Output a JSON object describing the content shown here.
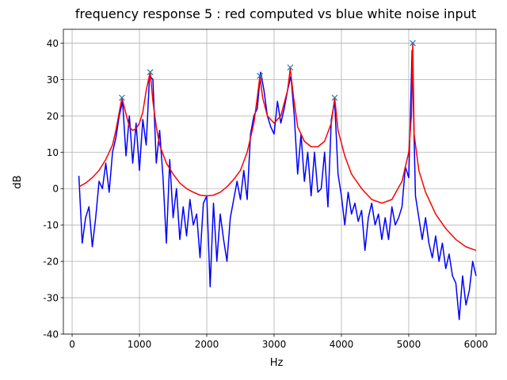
{
  "chart_data": {
    "type": "line",
    "title": "frequency response 5 : red computed vs blue white noise input",
    "x_label": "Hz",
    "y_label": "dB",
    "xlim": [
      -130,
      6295
    ],
    "ylim": [
      -40,
      43.8
    ],
    "xticks": [
      0,
      1000,
      2000,
      3000,
      4000,
      5000,
      6000
    ],
    "yticks": [
      -40,
      -30,
      -20,
      -10,
      0,
      10,
      20,
      30,
      40
    ],
    "grid": true,
    "series": [
      {
        "color": "#0000ff",
        "marker": "none",
        "x": [
          100,
          150,
          200,
          250,
          300,
          350,
          400,
          450,
          500,
          550,
          600,
          650,
          700,
          750,
          800,
          850,
          900,
          950,
          1000,
          1050,
          1100,
          1150,
          1200,
          1250,
          1300,
          1350,
          1400,
          1450,
          1500,
          1550,
          1600,
          1650,
          1700,
          1750,
          1800,
          1850,
          1900,
          1950,
          2000,
          2050,
          2100,
          2150,
          2200,
          2250,
          2300,
          2350,
          2400,
          2450,
          2500,
          2550,
          2600,
          2650,
          2700,
          2750,
          2800,
          2850,
          2900,
          2950,
          3000,
          3050,
          3100,
          3150,
          3200,
          3250,
          3300,
          3350,
          3400,
          3450,
          3500,
          3550,
          3600,
          3650,
          3700,
          3750,
          3800,
          3850,
          3900,
          3950,
          4000,
          4050,
          4100,
          4150,
          4200,
          4250,
          4300,
          4350,
          4400,
          4450,
          4500,
          4550,
          4600,
          4650,
          4700,
          4750,
          4800,
          4850,
          4900,
          4950,
          5000,
          5050,
          5100,
          5150,
          5200,
          5250,
          5300,
          5350,
          5400,
          5450,
          5500,
          5550,
          5600,
          5650,
          5700,
          5750,
          5800,
          5850,
          5900,
          5950,
          6000
        ],
        "values": [
          3.5,
          -15,
          -8,
          -5,
          -16,
          -8,
          2,
          0,
          7,
          -1,
          10,
          14,
          20,
          24,
          9,
          20,
          7,
          18,
          5,
          19,
          12,
          31,
          30,
          7,
          16,
          3,
          -15,
          8,
          -8,
          0,
          -14,
          -5,
          -13,
          -3,
          -10,
          -7,
          -19,
          -4,
          -2,
          -27,
          -4,
          -20,
          -7,
          -14,
          -20,
          -8,
          -3,
          2,
          -3,
          5,
          -3,
          15,
          20,
          22,
          32,
          27,
          20,
          17,
          15,
          24,
          18,
          22,
          27,
          31,
          20,
          4,
          15,
          2,
          10,
          -2,
          10,
          -1,
          0,
          10,
          -5,
          19,
          24,
          4,
          -2,
          -10,
          -1,
          -7,
          -4,
          -9,
          -6,
          -17,
          -8,
          -4,
          -10,
          -7,
          -14,
          -8,
          -14,
          -5,
          -10,
          -8,
          -5,
          6,
          3,
          38,
          -2,
          -8,
          -14,
          -8,
          -15,
          -19,
          -13,
          -20,
          -15,
          -22,
          -18,
          -24,
          -26,
          -36,
          -24,
          -32,
          -28,
          -20,
          -24
        ]
      },
      {
        "color": "#ff0000",
        "marker": "none",
        "x": [
          100,
          200,
          300,
          400,
          500,
          600,
          650,
          700,
          740,
          780,
          850,
          900,
          950,
          1000,
          1050,
          1100,
          1160,
          1200,
          1250,
          1300,
          1400,
          1500,
          1600,
          1700,
          1800,
          1900,
          2000,
          2100,
          2200,
          2300,
          2400,
          2500,
          2600,
          2700,
          2750,
          2790,
          2830,
          2900,
          3000,
          3100,
          3200,
          3240,
          3290,
          3350,
          3450,
          3550,
          3650,
          3750,
          3850,
          3900,
          3950,
          4050,
          4150,
          4300,
          4450,
          4600,
          4750,
          4900,
          5000,
          5040,
          5060,
          5080,
          5150,
          5250,
          5400,
          5550,
          5700,
          5850,
          6000
        ],
        "values": [
          0.5,
          1.5,
          3,
          5,
          8,
          12,
          16,
          21,
          25,
          22,
          17,
          16,
          16.5,
          18,
          21,
          27,
          32,
          24,
          17,
          12,
          7,
          4,
          1.5,
          0,
          -1,
          -1.8,
          -2,
          -1.8,
          -1,
          0.5,
          2.5,
          5,
          10,
          18,
          25,
          31,
          25,
          20,
          18,
          20,
          27,
          33,
          25,
          17,
          13,
          11.5,
          11.5,
          13,
          18,
          25,
          16,
          9,
          4,
          0,
          -3,
          -4,
          -3,
          2,
          10,
          20,
          40,
          15,
          5,
          -1,
          -7,
          -11,
          -14,
          -16,
          -17
        ]
      },
      {
        "color": "#1f77b4",
        "marker": "x",
        "x": [
          740,
          1160,
          2790,
          3240,
          3900,
          5060
        ],
        "values": [
          25,
          32,
          31,
          33.3,
          25,
          40
        ]
      }
    ]
  }
}
